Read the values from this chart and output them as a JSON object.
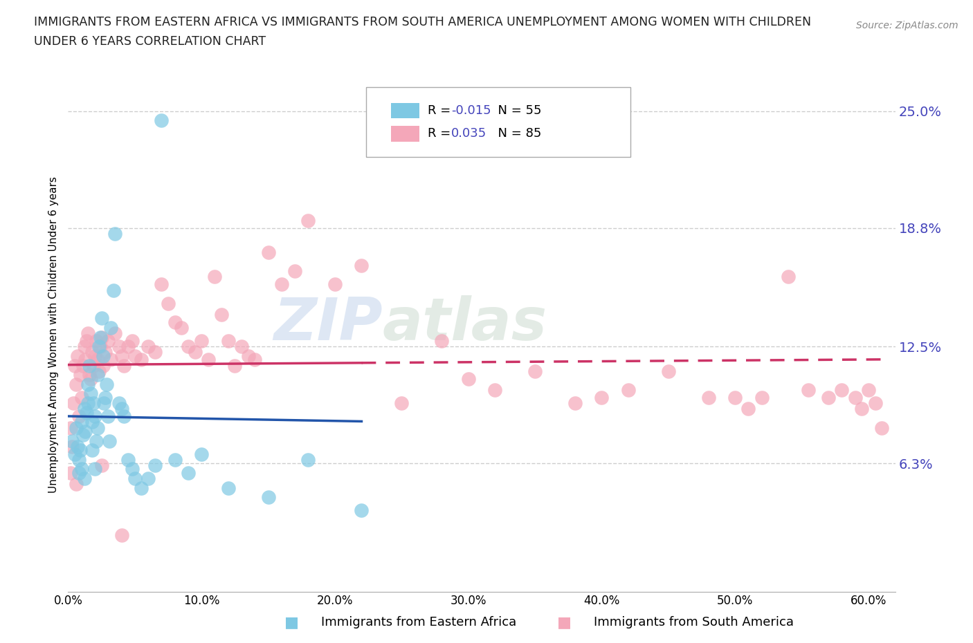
{
  "title_line1": "IMMIGRANTS FROM EASTERN AFRICA VS IMMIGRANTS FROM SOUTH AMERICA UNEMPLOYMENT AMONG WOMEN WITH CHILDREN",
  "title_line2": "UNDER 6 YEARS CORRELATION CHART",
  "source": "Source: ZipAtlas.com",
  "ylabel": "Unemployment Among Women with Children Under 6 years",
  "xlim": [
    0.0,
    0.62
  ],
  "ylim": [
    -0.005,
    0.268
  ],
  "yticks": [
    0.0,
    0.063,
    0.125,
    0.188,
    0.25
  ],
  "ytick_labels": [
    "",
    "6.3%",
    "12.5%",
    "18.8%",
    "25.0%"
  ],
  "xticks": [
    0.0,
    0.1,
    0.2,
    0.3,
    0.4,
    0.5,
    0.6
  ],
  "xtick_labels": [
    "0.0%",
    "10.0%",
    "20.0%",
    "30.0%",
    "40.0%",
    "50.0%",
    "60.0%"
  ],
  "legend_x_label": "Immigrants from Eastern Africa",
  "legend_y_label": "Immigrants from South America",
  "R_eastern": -0.015,
  "N_eastern": 55,
  "R_south": 0.035,
  "N_south": 85,
  "color_eastern": "#7ec8e3",
  "color_south": "#f4a7b9",
  "trendline_eastern": "#2255aa",
  "trendline_south": "#cc3366",
  "watermark_zip": "ZIP",
  "watermark_atlas": "atlas",
  "background_color": "#ffffff",
  "grid_color": "#c8c8c8",
  "axis_label_color": "#4444bb",
  "title_color": "#222222",
  "eastern_x": [
    0.003,
    0.005,
    0.006,
    0.007,
    0.008,
    0.008,
    0.009,
    0.01,
    0.01,
    0.011,
    0.012,
    0.012,
    0.013,
    0.014,
    0.015,
    0.015,
    0.016,
    0.017,
    0.018,
    0.018,
    0.019,
    0.02,
    0.02,
    0.021,
    0.022,
    0.022,
    0.023,
    0.024,
    0.025,
    0.026,
    0.027,
    0.028,
    0.029,
    0.03,
    0.031,
    0.032,
    0.034,
    0.035,
    0.038,
    0.04,
    0.042,
    0.045,
    0.048,
    0.05,
    0.055,
    0.06,
    0.065,
    0.07,
    0.08,
    0.09,
    0.1,
    0.12,
    0.15,
    0.18,
    0.22
  ],
  "eastern_y": [
    0.075,
    0.068,
    0.082,
    0.072,
    0.065,
    0.058,
    0.07,
    0.06,
    0.085,
    0.078,
    0.092,
    0.055,
    0.08,
    0.09,
    0.095,
    0.105,
    0.115,
    0.1,
    0.085,
    0.07,
    0.095,
    0.06,
    0.088,
    0.075,
    0.082,
    0.11,
    0.125,
    0.13,
    0.14,
    0.12,
    0.095,
    0.098,
    0.105,
    0.088,
    0.075,
    0.135,
    0.155,
    0.185,
    0.095,
    0.092,
    0.088,
    0.065,
    0.06,
    0.055,
    0.05,
    0.055,
    0.062,
    0.245,
    0.065,
    0.058,
    0.068,
    0.05,
    0.045,
    0.065,
    0.038
  ],
  "south_x": [
    0.002,
    0.004,
    0.005,
    0.006,
    0.007,
    0.008,
    0.009,
    0.01,
    0.011,
    0.012,
    0.013,
    0.014,
    0.015,
    0.016,
    0.017,
    0.018,
    0.019,
    0.02,
    0.021,
    0.022,
    0.023,
    0.024,
    0.025,
    0.026,
    0.028,
    0.03,
    0.032,
    0.035,
    0.038,
    0.04,
    0.042,
    0.045,
    0.048,
    0.05,
    0.055,
    0.06,
    0.065,
    0.07,
    0.075,
    0.08,
    0.085,
    0.09,
    0.095,
    0.1,
    0.105,
    0.11,
    0.115,
    0.12,
    0.125,
    0.13,
    0.135,
    0.14,
    0.15,
    0.16,
    0.17,
    0.18,
    0.2,
    0.22,
    0.25,
    0.28,
    0.3,
    0.32,
    0.35,
    0.38,
    0.4,
    0.42,
    0.45,
    0.48,
    0.5,
    0.51,
    0.52,
    0.54,
    0.555,
    0.57,
    0.58,
    0.59,
    0.595,
    0.6,
    0.605,
    0.61,
    0.002,
    0.003,
    0.006,
    0.025,
    0.04
  ],
  "south_y": [
    0.082,
    0.095,
    0.115,
    0.105,
    0.12,
    0.088,
    0.11,
    0.098,
    0.115,
    0.125,
    0.118,
    0.128,
    0.132,
    0.11,
    0.108,
    0.122,
    0.115,
    0.12,
    0.128,
    0.118,
    0.112,
    0.125,
    0.13,
    0.115,
    0.122,
    0.128,
    0.118,
    0.132,
    0.125,
    0.12,
    0.115,
    0.125,
    0.128,
    0.12,
    0.118,
    0.125,
    0.122,
    0.158,
    0.148,
    0.138,
    0.135,
    0.125,
    0.122,
    0.128,
    0.118,
    0.162,
    0.142,
    0.128,
    0.115,
    0.125,
    0.12,
    0.118,
    0.175,
    0.158,
    0.165,
    0.192,
    0.158,
    0.168,
    0.095,
    0.128,
    0.108,
    0.102,
    0.112,
    0.095,
    0.098,
    0.102,
    0.112,
    0.098,
    0.098,
    0.092,
    0.098,
    0.162,
    0.102,
    0.098,
    0.102,
    0.098,
    0.092,
    0.102,
    0.095,
    0.082,
    0.058,
    0.072,
    0.052,
    0.062,
    0.025
  ]
}
